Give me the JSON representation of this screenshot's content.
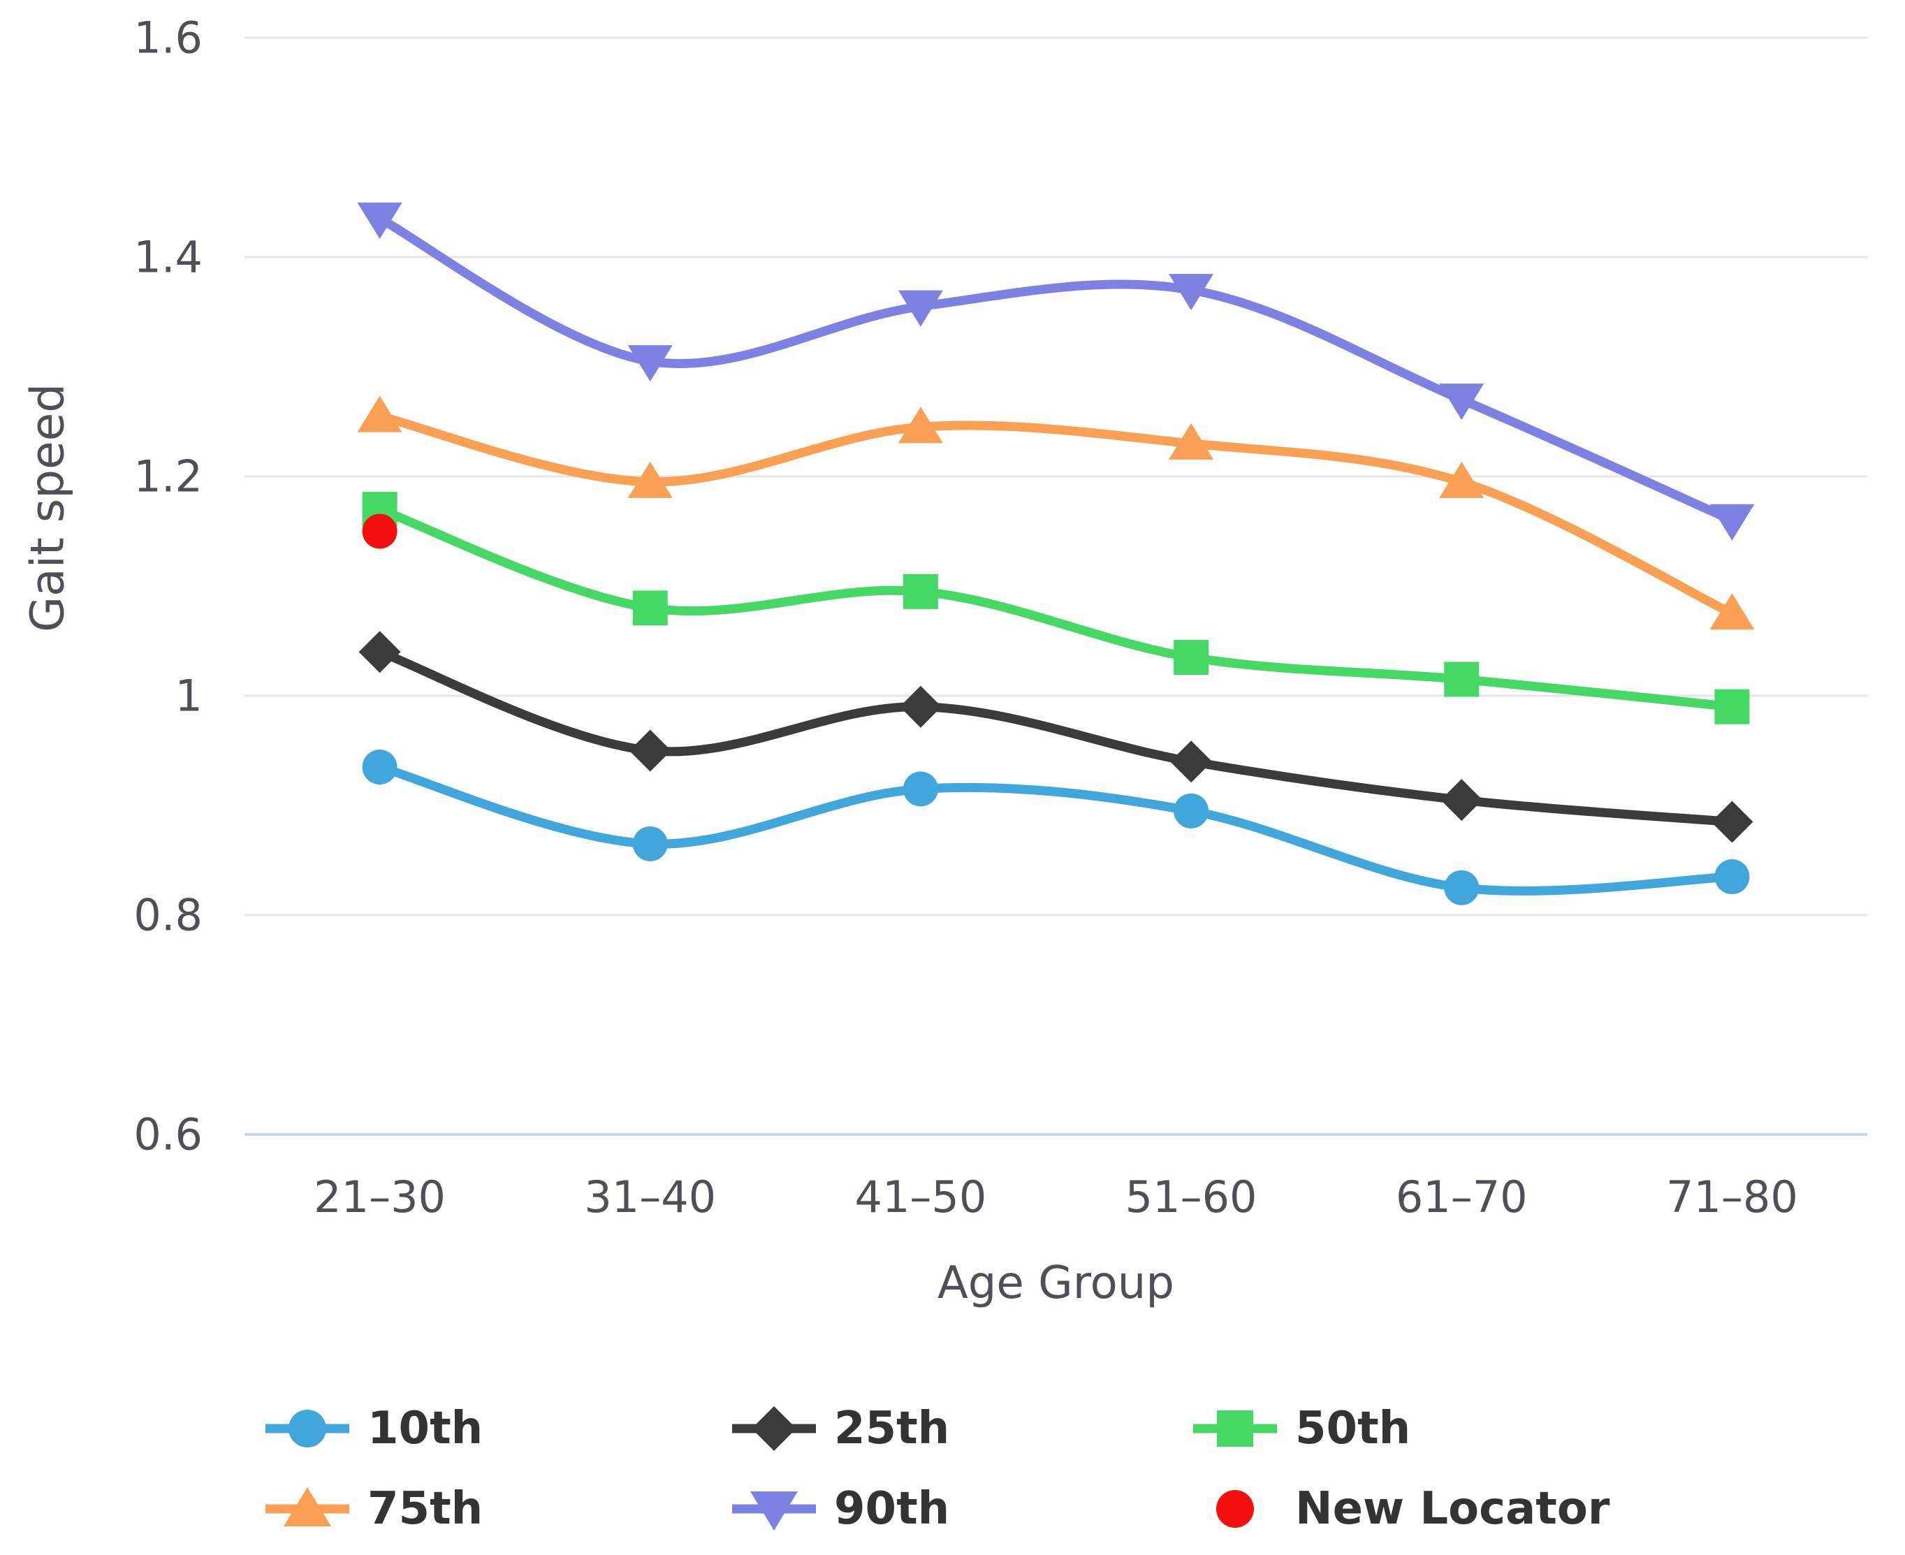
{
  "chart_data": {
    "type": "line",
    "subtype": "spline-with-markers",
    "title": "",
    "xlabel": "Age Group",
    "ylabel": "Gait speed",
    "categories": [
      "21–30",
      "31–40",
      "41–50",
      "51–60",
      "61–70",
      "71–80"
    ],
    "ylim": [
      0.6,
      1.6
    ],
    "ytick_labels": [
      "1.6",
      "1.4",
      "1.2",
      "1",
      "0.8",
      "0.6"
    ],
    "ytick_values": [
      1.6,
      1.4,
      1.2,
      1.0,
      0.8,
      0.6
    ],
    "grid": true,
    "legend_position": "bottom-left",
    "series": [
      {
        "name": "10th",
        "marker": "circle",
        "color": "#41a6dc",
        "values": [
          0.935,
          0.865,
          0.915,
          0.895,
          0.825,
          0.835
        ]
      },
      {
        "name": "25th",
        "marker": "diamond",
        "color": "#3b3b3d",
        "values": [
          1.04,
          0.95,
          0.99,
          0.94,
          0.905,
          0.885
        ]
      },
      {
        "name": "50th",
        "marker": "square",
        "color": "#46d865",
        "values": [
          1.17,
          1.08,
          1.095,
          1.035,
          1.015,
          0.99
        ]
      },
      {
        "name": "75th",
        "marker": "triangle-up",
        "color": "#f9a054",
        "values": [
          1.255,
          1.195,
          1.245,
          1.23,
          1.195,
          1.075
        ]
      },
      {
        "name": "90th",
        "marker": "triangle-down",
        "color": "#7d81e2",
        "values": [
          1.435,
          1.305,
          1.355,
          1.37,
          1.27,
          1.16
        ]
      }
    ],
    "point_series": [
      {
        "name": "New Locator",
        "marker": "circle",
        "color": "#f40f0f",
        "category": "21–30",
        "value": 1.15
      }
    ],
    "colors": {
      "gridline": "#e6e6e6",
      "axis_baseline": "#c8d7ef",
      "tick_label": "#4f4f57",
      "axis_title": "#4f4f57",
      "legend_text": "#333333",
      "background": "#ffffff"
    }
  }
}
